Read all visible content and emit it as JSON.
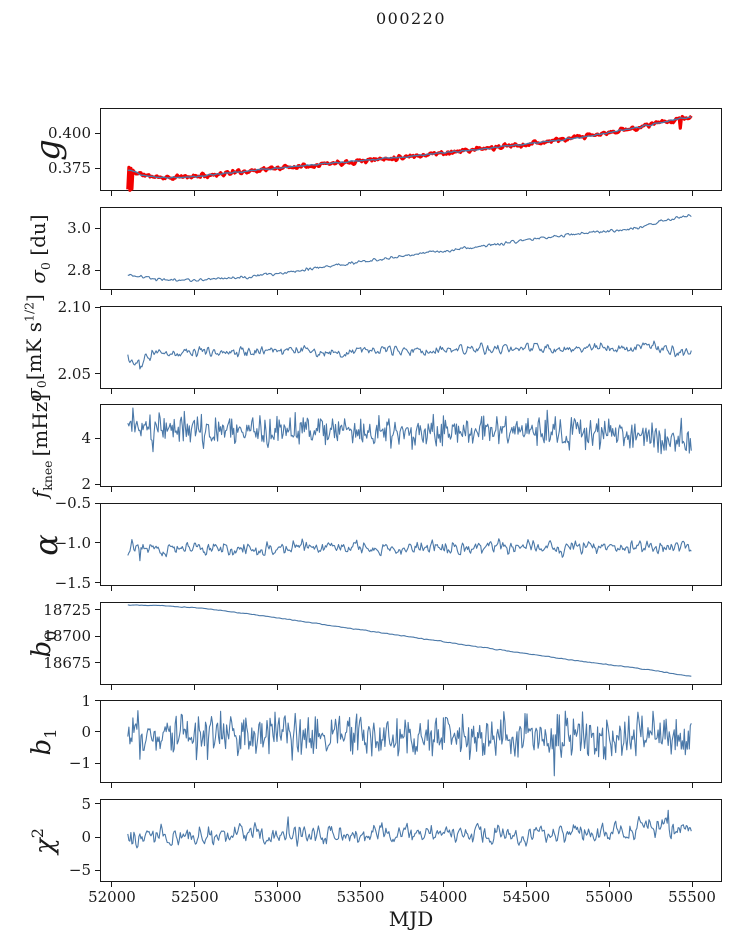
{
  "title": "000220",
  "chart_data": {
    "type": "line",
    "title": "000220",
    "xlabel": "MJD",
    "xlim": [
      51928,
      55681
    ],
    "xticks": [
      52000,
      52500,
      53000,
      53500,
      54000,
      54500,
      55000,
      55500
    ],
    "xtick_labels": [
      "52000",
      "52500",
      "53000",
      "53500",
      "54000",
      "54500",
      "55000",
      "55500"
    ],
    "x_start": 52090,
    "x_end": 55490,
    "n_points": 560,
    "grid": false,
    "legend": "none",
    "colors": {
      "line": "#4a78a8",
      "red": "#f20000",
      "spine": "#1a1a1a"
    },
    "panels": [
      {
        "id": "g",
        "ylabel_text": "g",
        "ylabel_html": "<i>g</i>",
        "ylim": [
          0.3586,
          0.4179
        ],
        "yticks": [
          {
            "v": 0.4,
            "label": "0.400"
          },
          {
            "v": 0.375,
            "label": "0.375"
          }
        ],
        "series": [
          {
            "name": "g-raw",
            "color": "#f20000",
            "width": 3.2,
            "noise": 0.003,
            "smooth": 1,
            "seed": 11,
            "keypoints": [
              [
                52090,
                0.3748
              ],
              [
                52180,
                0.3708
              ],
              [
                52320,
                0.3687
              ],
              [
                52500,
                0.3698
              ],
              [
                52700,
                0.3722
              ],
              [
                53000,
                0.3758
              ],
              [
                53300,
                0.379
              ],
              [
                53600,
                0.382
              ],
              [
                53900,
                0.3855
              ],
              [
                54200,
                0.389
              ],
              [
                54500,
                0.393
              ],
              [
                54750,
                0.3965
              ],
              [
                54950,
                0.4
              ],
              [
                55150,
                0.4045
              ],
              [
                55300,
                0.408
              ],
              [
                55400,
                0.4105
              ],
              [
                55490,
                0.4125
              ]
            ],
            "spikes": [
              [
                52092,
                0.3605
              ],
              [
                52098,
                0.3762
              ],
              [
                52104,
                0.3598
              ],
              [
                52110,
                0.3755
              ],
              [
                52116,
                0.3608
              ],
              [
                52122,
                0.3742
              ],
              [
                55422,
                0.4042
              ]
            ]
          },
          {
            "name": "g-fit",
            "color": "#4a78a8",
            "width": 1.4,
            "noise": 0.0012,
            "smooth": 2,
            "seed": 12,
            "keypoints": [
              [
                52090,
                0.3748
              ],
              [
                52180,
                0.3708
              ],
              [
                52320,
                0.3687
              ],
              [
                52500,
                0.3698
              ],
              [
                52700,
                0.3722
              ],
              [
                53000,
                0.3758
              ],
              [
                53300,
                0.379
              ],
              [
                53600,
                0.382
              ],
              [
                53900,
                0.3855
              ],
              [
                54200,
                0.389
              ],
              [
                54500,
                0.393
              ],
              [
                54750,
                0.3965
              ],
              [
                54950,
                0.4
              ],
              [
                55150,
                0.4045
              ],
              [
                55300,
                0.408
              ],
              [
                55400,
                0.4105
              ],
              [
                55490,
                0.4125
              ]
            ],
            "spikes": []
          }
        ]
      },
      {
        "id": "sigma0-du",
        "ylabel_text": "sigma0 [du]",
        "ylabel_html": "<i>σ</i><sub>0</sub> [du]",
        "ylim": [
          2.705,
          3.1
        ],
        "yticks": [
          {
            "v": 3.0,
            "label": "3.0"
          },
          {
            "v": 2.8,
            "label": "2.8"
          }
        ],
        "series": [
          {
            "name": "sigma0-du",
            "color": "#4a78a8",
            "width": 1.1,
            "noise": 0.015,
            "smooth": 1,
            "seed": 21,
            "keypoints": [
              [
                52090,
                2.782
              ],
              [
                52250,
                2.764
              ],
              [
                52400,
                2.756
              ],
              [
                52550,
                2.758
              ],
              [
                52700,
                2.764
              ],
              [
                53000,
                2.79
              ],
              [
                53300,
                2.822
              ],
              [
                53600,
                2.855
              ],
              [
                53900,
                2.887
              ],
              [
                54200,
                2.915
              ],
              [
                54500,
                2.947
              ],
              [
                54800,
                2.977
              ],
              [
                55100,
                2.995
              ],
              [
                55250,
                3.022
              ],
              [
                55350,
                3.045
              ],
              [
                55490,
                3.068
              ]
            ],
            "spikes": []
          }
        ]
      },
      {
        "id": "sigma0-mks",
        "ylabel_text": "sigma0 [mK s^1/2]",
        "ylabel_html": "<i>σ</i><sub>0</sub>[mK s<sup>1/2</sup>]",
        "ylim": [
          2.0387,
          2.1011
        ],
        "yticks": [
          {
            "v": 2.1,
            "label": "2.10"
          },
          {
            "v": 2.05,
            "label": "2.05"
          }
        ],
        "series": [
          {
            "name": "sigma0-mks",
            "color": "#4a78a8",
            "width": 1.1,
            "noise": 0.0075,
            "smooth": 1,
            "seed": 31,
            "keypoints": [
              [
                52090,
                2.0615
              ],
              [
                52150,
                2.056
              ],
              [
                52220,
                2.0645
              ],
              [
                52350,
                2.066
              ],
              [
                52500,
                2.0685
              ],
              [
                52800,
                2.0675
              ],
              [
                53000,
                2.0695
              ],
              [
                53200,
                2.0685
              ],
              [
                53350,
                2.0655
              ],
              [
                53500,
                2.0695
              ],
              [
                53700,
                2.068
              ],
              [
                53900,
                2.0675
              ],
              [
                54100,
                2.069
              ],
              [
                54300,
                2.0685
              ],
              [
                54500,
                2.0705
              ],
              [
                54700,
                2.068
              ],
              [
                54900,
                2.0715
              ],
              [
                55100,
                2.0695
              ],
              [
                55250,
                2.0725
              ],
              [
                55350,
                2.0685
              ],
              [
                55490,
                2.067
              ]
            ],
            "spikes": [
              [
                52160,
                2.0545
              ]
            ]
          }
        ]
      },
      {
        "id": "fknee",
        "ylabel_text": "f_knee [mHz]",
        "ylabel_html": "<i>f</i><sub>knee</sub> [mHz]",
        "ylim": [
          1.87,
          5.48
        ],
        "yticks": [
          {
            "v": 4,
            "label": "4"
          },
          {
            "v": 2,
            "label": "2"
          }
        ],
        "series": [
          {
            "name": "fknee",
            "color": "#4a78a8",
            "width": 1.1,
            "noise": 0.8,
            "smooth": 0,
            "seed": 41,
            "keypoints": [
              [
                52090,
                4.4
              ],
              [
                52150,
                4.7
              ],
              [
                52300,
                4.45
              ],
              [
                52600,
                4.35
              ],
              [
                53000,
                4.35
              ],
              [
                53500,
                4.3
              ],
              [
                54000,
                4.3
              ],
              [
                54500,
                4.35
              ],
              [
                54800,
                4.3
              ],
              [
                55100,
                4.15
              ],
              [
                55300,
                4.05
              ],
              [
                55490,
                3.85
              ]
            ],
            "spikes": [
              [
                52120,
                5.35
              ],
              [
                52240,
                3.45
              ],
              [
                52430,
                5.2
              ],
              [
                53100,
                5.15
              ],
              [
                54620,
                5.25
              ],
              [
                55430,
                4.9
              ],
              [
                55460,
                3.5
              ]
            ]
          }
        ]
      },
      {
        "id": "alpha",
        "ylabel_text": "alpha",
        "ylabel_html": "<i>α</i>",
        "ylim": [
          -1.54,
          -0.5
        ],
        "yticks": [
          {
            "v": -0.5,
            "label": "−0.5"
          },
          {
            "v": -1.0,
            "label": "−1.0"
          },
          {
            "v": -1.5,
            "label": "−1.5"
          }
        ],
        "series": [
          {
            "name": "alpha",
            "color": "#4a78a8",
            "width": 1.1,
            "noise": 0.16,
            "smooth": 1,
            "seed": 51,
            "keypoints": [
              [
                52090,
                -1.02
              ],
              [
                52200,
                -1.06
              ],
              [
                52500,
                -1.05
              ],
              [
                53000,
                -1.05
              ],
              [
                54000,
                -1.05
              ],
              [
                55000,
                -1.04
              ],
              [
                55490,
                -1.05
              ]
            ],
            "spikes": [
              [
                52160,
                -1.21
              ]
            ]
          }
        ]
      },
      {
        "id": "b0",
        "ylabel_text": "b0",
        "ylabel_html": "<i>b</i><sub>0</sub>",
        "ylim": [
          18654,
          18732.5
        ],
        "yticks": [
          {
            "v": 18725,
            "label": "18725"
          },
          {
            "v": 18700,
            "label": "18700"
          },
          {
            "v": 18675,
            "label": "18675"
          }
        ],
        "series": [
          {
            "name": "b0",
            "color": "#4a78a8",
            "width": 1.1,
            "noise": 0.9,
            "smooth": 2,
            "seed": 61,
            "keypoints": [
              [
                52090,
                18730.5
              ],
              [
                52300,
                18730
              ],
              [
                52500,
                18728
              ],
              [
                52700,
                18724.5
              ],
              [
                52900,
                18720.5
              ],
              [
                53100,
                18716
              ],
              [
                53300,
                18711.5
              ],
              [
                53500,
                18707
              ],
              [
                53700,
                18702.5
              ],
              [
                53900,
                18698
              ],
              [
                54100,
                18693.5
              ],
              [
                54300,
                18689
              ],
              [
                54500,
                18684.5
              ],
              [
                54700,
                18680
              ],
              [
                54900,
                18676
              ],
              [
                55100,
                18672
              ],
              [
                55250,
                18669
              ],
              [
                55350,
                18666.5
              ],
              [
                55420,
                18664.5
              ],
              [
                55490,
                18663
              ]
            ],
            "spikes": []
          }
        ]
      },
      {
        "id": "b1",
        "ylabel_text": "b1",
        "ylabel_html": "<i>b</i><sub>1</sub>",
        "ylim": [
          -1.645,
          1.032
        ],
        "yticks": [
          {
            "v": 1,
            "label": "1"
          },
          {
            "v": 0,
            "label": "0"
          },
          {
            "v": -1,
            "label": "−1"
          }
        ],
        "series": [
          {
            "name": "b1",
            "color": "#4a78a8",
            "width": 1.1,
            "noise": 0.85,
            "smooth": 0,
            "seed": 71,
            "keypoints": [
              [
                52090,
                -0.05
              ],
              [
                52400,
                -0.1
              ],
              [
                53000,
                -0.08
              ],
              [
                54000,
                -0.1
              ],
              [
                55000,
                -0.05
              ],
              [
                55490,
                -0.08
              ]
            ],
            "spikes": [
              [
                52150,
                0.72
              ],
              [
                54660,
                -1.38
              ],
              [
                55260,
                0.7
              ]
            ]
          }
        ]
      },
      {
        "id": "chi2",
        "ylabel_text": "chi^2",
        "ylabel_html": "<i>χ</i><sup>2</sup>",
        "ylim": [
          -6.79,
          5.75
        ],
        "yticks": [
          {
            "v": 5,
            "label": "5"
          },
          {
            "v": 0,
            "label": "0"
          },
          {
            "v": -5,
            "label": "−5"
          }
        ],
        "series": [
          {
            "name": "chi2",
            "color": "#4a78a8",
            "width": 1.1,
            "noise": 2.8,
            "smooth": 1,
            "seed": 81,
            "keypoints": [
              [
                52090,
                0.2
              ],
              [
                52500,
                0.4
              ],
              [
                53000,
                0.5
              ],
              [
                53500,
                0.5
              ],
              [
                54000,
                0.6
              ],
              [
                54500,
                0.7
              ],
              [
                55000,
                0.9
              ],
              [
                55300,
                1.3
              ],
              [
                55490,
                1.4
              ]
            ],
            "spikes": [
              [
                53060,
                3.2
              ],
              [
                55350,
                4.2
              ]
            ]
          }
        ]
      }
    ]
  }
}
